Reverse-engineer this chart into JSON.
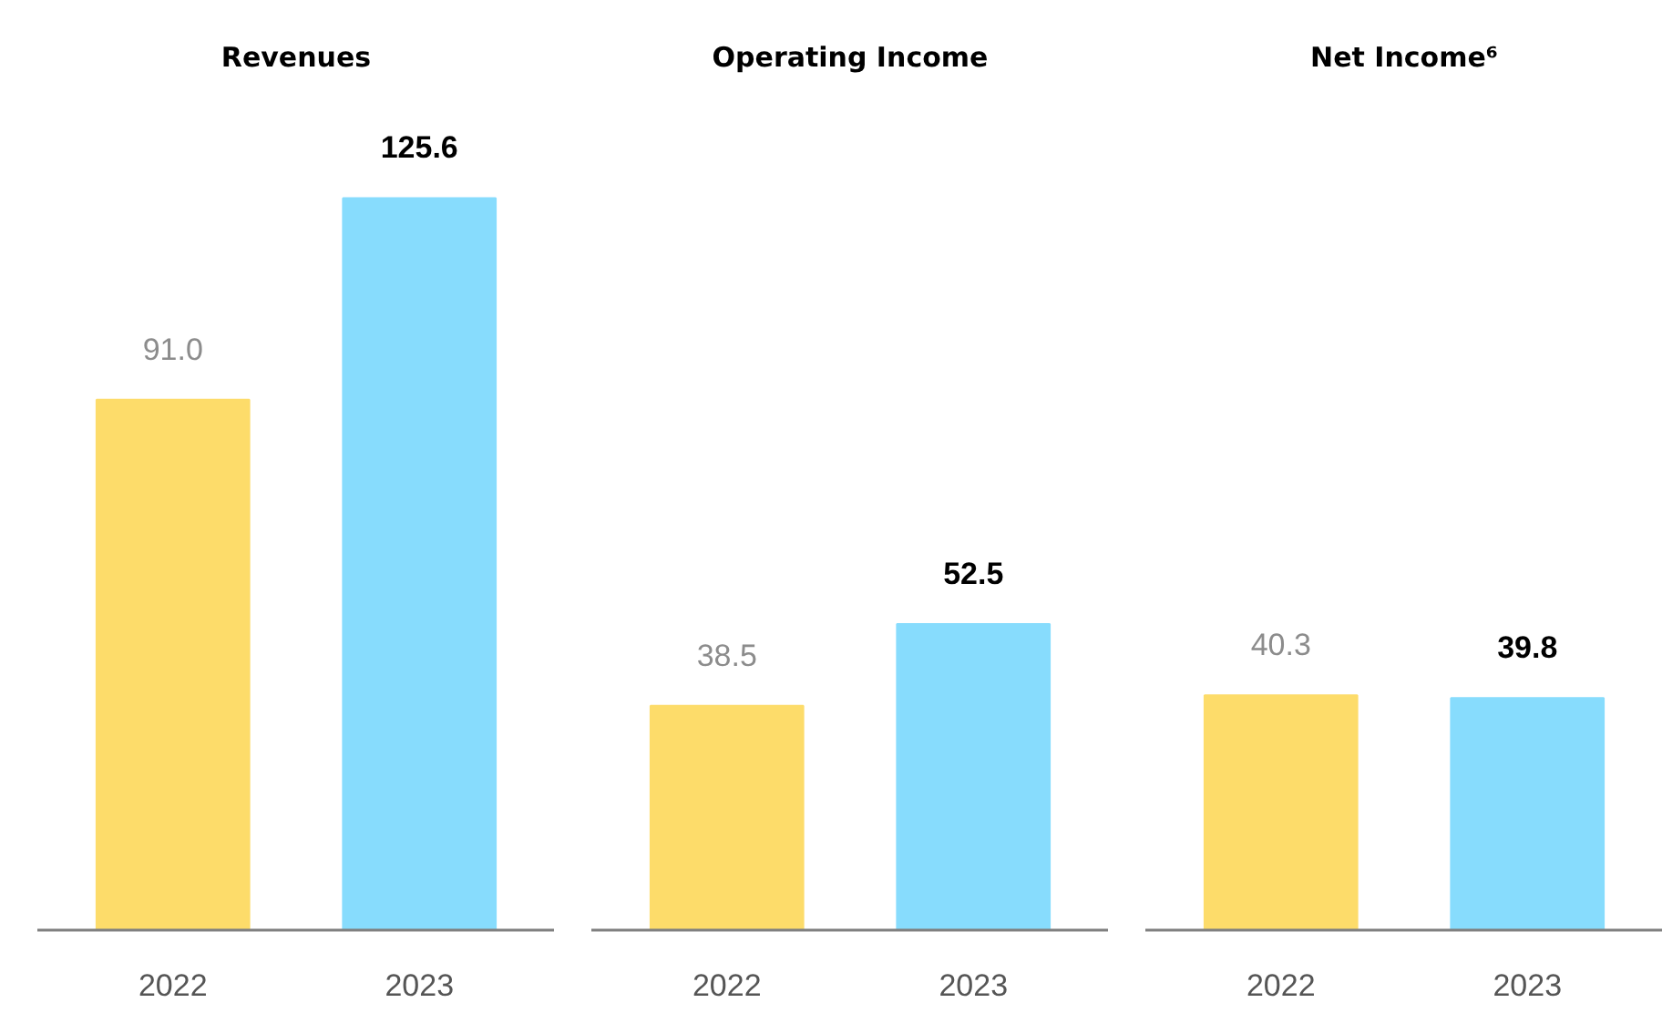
{
  "chart_data": [
    {
      "type": "bar",
      "title": "Revenues",
      "categories": [
        "2022",
        "2023"
      ],
      "values": [
        91.0,
        125.6
      ],
      "value_labels": [
        "91.0",
        "125.6"
      ],
      "colors": [
        "#fddc6a",
        "#87dcfd"
      ],
      "tick_labels": "x",
      "grid": false
    },
    {
      "type": "bar",
      "title": "Operating Income",
      "categories": [
        "2022",
        "2023"
      ],
      "values": [
        38.5,
        52.5
      ],
      "value_labels": [
        "38.5",
        "52.5"
      ],
      "colors": [
        "#fddc6a",
        "#87dcfd"
      ],
      "tick_labels": "x",
      "grid": false
    },
    {
      "type": "bar",
      "title": "Net Income⁶",
      "categories": [
        "2022",
        "2023"
      ],
      "values": [
        40.3,
        39.8
      ],
      "value_labels": [
        "40.3",
        "39.8"
      ],
      "colors": [
        "#fddc6a",
        "#87dcfd"
      ],
      "tick_labels": "x",
      "grid": false
    }
  ]
}
